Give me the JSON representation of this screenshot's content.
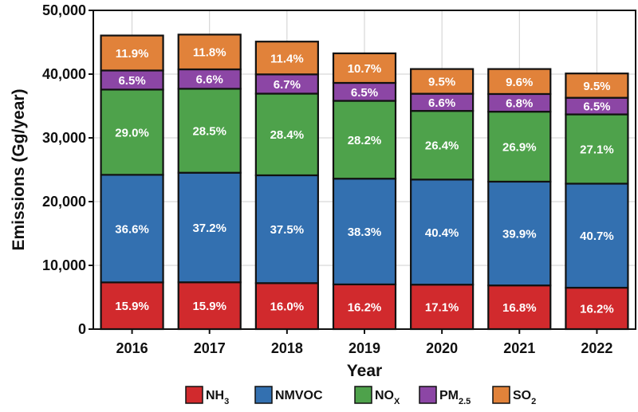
{
  "chart_data": {
    "type": "bar",
    "stacked": true,
    "xlabel": "Year",
    "ylabel": "Emissions (Gg/year)",
    "ylim": [
      0,
      50000
    ],
    "yticks": [
      0,
      10000,
      20000,
      30000,
      40000,
      50000
    ],
    "ytick_labels": [
      "0",
      "10,000",
      "20,000",
      "30,000",
      "40,000",
      "50,000"
    ],
    "grid": true,
    "legend_position": "bottom",
    "categories": [
      "2016",
      "2017",
      "2018",
      "2019",
      "2020",
      "2021",
      "2022"
    ],
    "totals": [
      46100,
      46200,
      45100,
      43300,
      40800,
      40800,
      40100
    ],
    "series": [
      {
        "name": "NH3",
        "legend_main": "NH",
        "legend_sub": "3",
        "color": "#d12a2d",
        "percent_labels": [
          "15.9%",
          "15.9%",
          "16.0%",
          "16.2%",
          "17.1%",
          "16.8%",
          "16.2%"
        ],
        "values": [
          7330,
          7346,
          7216,
          7015,
          6977,
          6854,
          6496
        ]
      },
      {
        "name": "NMVOC",
        "legend_main": "NMVOC",
        "legend_sub": "",
        "color": "#3370b0",
        "percent_labels": [
          "36.6%",
          "37.2%",
          "37.5%",
          "38.3%",
          "40.4%",
          "39.9%",
          "40.7%"
        ],
        "values": [
          16873,
          17186,
          16913,
          16584,
          16483,
          16279,
          16321
        ]
      },
      {
        "name": "NOx",
        "legend_main": "NO",
        "legend_sub": "X",
        "color": "#4ea24b",
        "percent_labels": [
          "29.0%",
          "28.5%",
          "28.4%",
          "28.2%",
          "26.4%",
          "26.9%",
          "27.1%"
        ],
        "values": [
          13369,
          13167,
          12808,
          12211,
          10771,
          10975,
          10867
        ]
      },
      {
        "name": "PM2.5",
        "legend_main": "PM",
        "legend_sub": "2.5",
        "color": "#8c46a5",
        "percent_labels": [
          "6.5%",
          "6.6%",
          "6.7%",
          "6.5%",
          "6.6%",
          "6.8%",
          "6.5%"
        ],
        "values": [
          2997,
          3049,
          3022,
          2815,
          2693,
          2774,
          2607
        ]
      },
      {
        "name": "SO2",
        "legend_main": "SO",
        "legend_sub": "2",
        "color": "#e1823a",
        "percent_labels": [
          "11.9%",
          "11.8%",
          "11.4%",
          "10.7%",
          "9.5%",
          "9.6%",
          "9.5%"
        ],
        "values": [
          5486,
          5452,
          5141,
          4633,
          3876,
          3917,
          3810
        ]
      }
    ]
  }
}
